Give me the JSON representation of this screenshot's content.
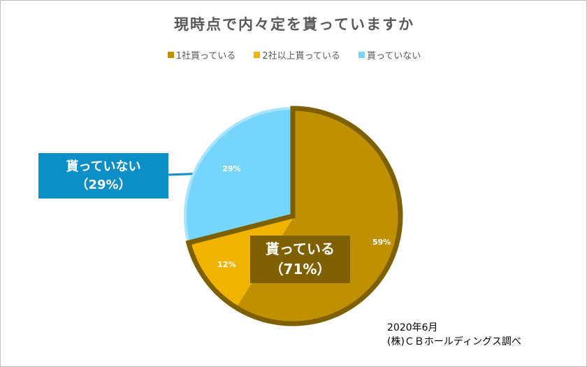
{
  "chart_data": {
    "type": "pie",
    "title": "現時点で内々定を貰っていますか",
    "legend_position": "top",
    "categories": [
      "1社貰っている",
      "2社以上貰っている",
      "貰っていない"
    ],
    "values": [
      59,
      12,
      29
    ],
    "data_labels": [
      "59%",
      "12%",
      "29%"
    ],
    "colors": [
      "#bf9000",
      "#f0b400",
      "#75d5fa"
    ],
    "group_outline_color": "#7f6000",
    "annotations": {
      "not_received": {
        "line1": "貰っていない",
        "line2": "（29%）"
      },
      "received": {
        "line1": "貰っている",
        "line2": "（71%）"
      }
    }
  },
  "source": {
    "date": "2020年6月",
    "org": "(株)ＣＢホールディングス調べ"
  }
}
